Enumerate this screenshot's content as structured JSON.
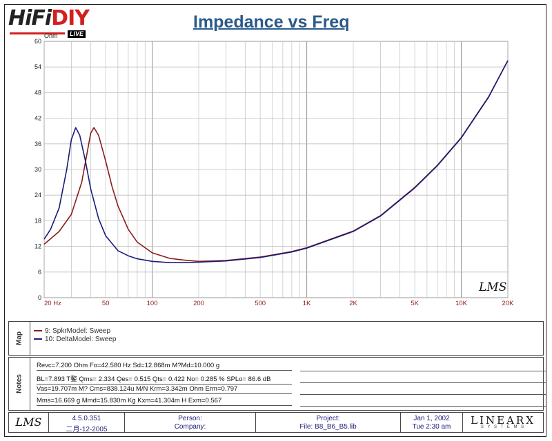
{
  "header": {
    "logo": {
      "hifi": "HiFi",
      "diy": "DIY",
      "live": "LIVE"
    },
    "title": "Impedance vs Freq",
    "ylabel": "Ohm"
  },
  "chart_data": {
    "type": "line",
    "title": "Impedance vs Freq",
    "ylabel": "Ohm",
    "xlabel": "",
    "xscale": "log",
    "xlim": [
      20,
      20000
    ],
    "ylim": [
      0,
      60
    ],
    "grid": true,
    "y_ticks": [
      "0",
      "6",
      "12",
      "18",
      "24",
      "30",
      "36",
      "42",
      "48",
      "54",
      "60"
    ],
    "x_ticks": [
      {
        "v": 20,
        "label": "20  Hz"
      },
      {
        "v": 50,
        "label": "50"
      },
      {
        "v": 100,
        "label": "100"
      },
      {
        "v": 200,
        "label": "200"
      },
      {
        "v": 500,
        "label": "500"
      },
      {
        "v": 1000,
        "label": "1K"
      },
      {
        "v": 2000,
        "label": "2K"
      },
      {
        "v": 5000,
        "label": "5K"
      },
      {
        "v": 10000,
        "label": "10K"
      },
      {
        "v": 20000,
        "label": "20K"
      }
    ],
    "series": [
      {
        "name": "9: SpkrModel: Sweep",
        "color": "#8b1a1a",
        "x": [
          20,
          25,
          30,
          35,
          38,
          40,
          42,
          45,
          50,
          55,
          60,
          70,
          80,
          100,
          130,
          160,
          200,
          300,
          500,
          800,
          1000,
          2000,
          3000,
          5000,
          7000,
          10000,
          15000,
          20000
        ],
        "y": [
          12.5,
          15.5,
          19.5,
          27,
          34,
          38.5,
          39.8,
          38,
          32,
          26,
          21.5,
          16,
          13,
          10.5,
          9.2,
          8.8,
          8.5,
          8.7,
          9.5,
          10.8,
          11.7,
          15.6,
          19.2,
          25.8,
          31,
          37.5,
          47,
          55.5
        ]
      },
      {
        "name": "10: DeltaModel: Sweep",
        "color": "#1a1a7a",
        "x": [
          20,
          22,
          25,
          28,
          30,
          32,
          34,
          37,
          40,
          45,
          50,
          60,
          70,
          80,
          100,
          130,
          160,
          200,
          300,
          500,
          800,
          1000,
          2000,
          3000,
          5000,
          7000,
          10000,
          15000,
          20000
        ],
        "y": [
          13.7,
          16,
          21,
          30,
          37,
          39.8,
          38,
          32,
          25.5,
          18.5,
          14.5,
          11,
          9.8,
          9.1,
          8.5,
          8.2,
          8.2,
          8.3,
          8.6,
          9.4,
          10.7,
          11.6,
          15.5,
          19.1,
          25.7,
          30.9,
          37.4,
          46.9,
          55.5
        ]
      }
    ]
  },
  "watermark": "LMS",
  "map": {
    "label": "Map",
    "items": [
      "9: SpkrModel: Sweep",
      "10: DeltaModel: Sweep"
    ]
  },
  "notes": {
    "label": "Notes",
    "lines": [
      "Revc=7.200 Ohm  Fo=42.580 Hz  Sd=12.868m M?Md=10.000 g",
      "BL=7.893 T鏊  Qms= 2.334  Qes= 0.515  Qts= 0.422  No= 0.285 %  SPLo= 86.6 dB",
      "Vas=19.707m M? Cms=838.124u M/N  Krm=3.342m Ohm  Erm=0.797",
      "Mms=16.669 g  Mmd=15.830m Kg  Kxm=41.304m H  Exm=0.567"
    ]
  },
  "footer": {
    "lms": "LMS",
    "version": "4.5.0.351",
    "build_date": "二月-12-2005",
    "person_label": "Person:",
    "company_label": "Company:",
    "project_label": "Project:",
    "file_label": "File:  B8_B6_B5.lib",
    "date": "Jan  1, 2002",
    "time": "Tue  2:30 am",
    "brand": "LINEARX",
    "brand_sub": "S Y S T E M S"
  }
}
